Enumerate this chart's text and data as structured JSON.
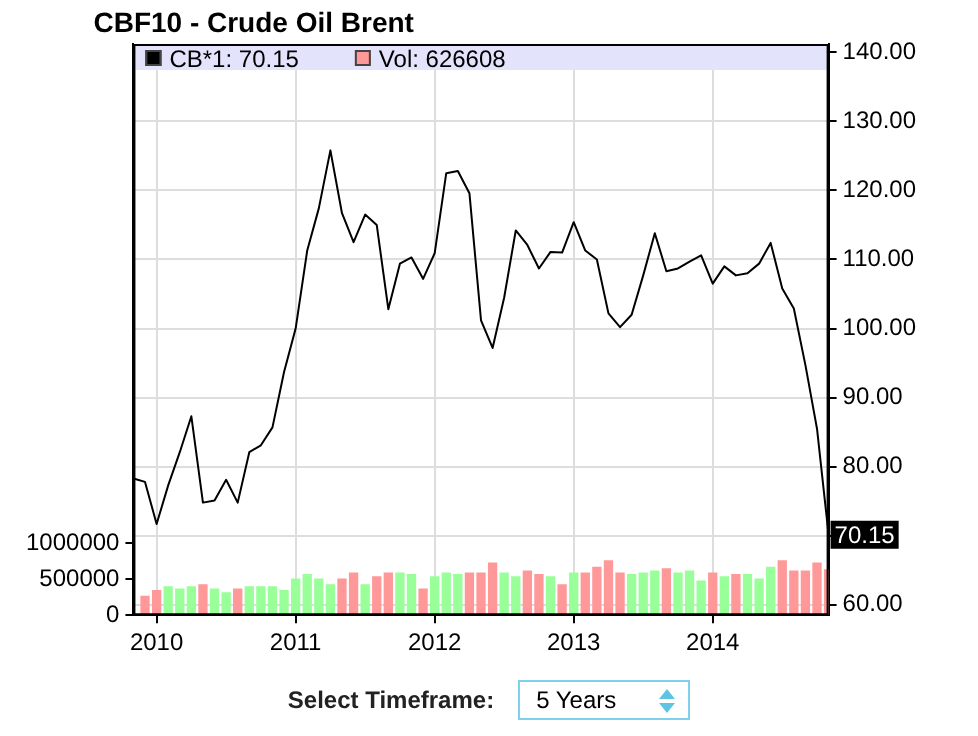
{
  "chart_data": {
    "type": "line",
    "title": "CBF10 - Crude Oil Brent",
    "series": [
      {
        "name": "CB*1: 70.15",
        "axis": "y2",
        "color": "#000000",
        "value_labels": [
          null,
          null,
          null,
          null,
          null,
          null,
          null,
          null,
          null,
          null,
          null,
          null,
          null,
          null,
          null,
          null,
          null,
          null,
          null,
          null,
          null,
          null,
          null,
          null,
          null,
          null,
          null,
          null,
          null,
          null,
          null,
          null,
          null,
          null,
          null,
          null,
          null,
          null,
          null,
          null,
          null,
          null,
          null,
          null,
          null,
          null,
          null,
          null,
          null,
          null,
          null,
          null,
          null,
          null,
          null,
          null,
          null,
          null,
          null,
          null,
          "70.15"
        ],
        "x": [
          "2009-11",
          "2009-12",
          "2010-01",
          "2010-02",
          "2010-03",
          "2010-04",
          "2010-05",
          "2010-06",
          "2010-07",
          "2010-08",
          "2010-09",
          "2010-10",
          "2010-11",
          "2010-12",
          "2011-01",
          "2011-02",
          "2011-03",
          "2011-04",
          "2011-05",
          "2011-06",
          "2011-07",
          "2011-08",
          "2011-09",
          "2011-10",
          "2011-11",
          "2011-12",
          "2012-01",
          "2012-02",
          "2012-03",
          "2012-04",
          "2012-05",
          "2012-06",
          "2012-07",
          "2012-08",
          "2012-09",
          "2012-10",
          "2012-11",
          "2012-12",
          "2013-01",
          "2013-02",
          "2013-03",
          "2013-04",
          "2013-05",
          "2013-06",
          "2013-07",
          "2013-08",
          "2013-09",
          "2013-10",
          "2013-11",
          "2013-12",
          "2014-01",
          "2014-02",
          "2014-03",
          "2014-04",
          "2014-05",
          "2014-06",
          "2014-07",
          "2014-08",
          "2014-09",
          "2014-10",
          "2014-11"
        ],
        "values": [
          78.3,
          77.8,
          71.7,
          77.3,
          82.1,
          87.3,
          74.8,
          75.1,
          78.1,
          74.8,
          82.1,
          83.1,
          85.7,
          93.7,
          100,
          111.3,
          117.4,
          125.8,
          116.7,
          112.5,
          116.5,
          115,
          102.8,
          109.4,
          110.3,
          107.2,
          110.9,
          122.5,
          122.8,
          119.6,
          101.2,
          97.2,
          104.5,
          114.2,
          112.1,
          108.7,
          111.1,
          111,
          115.4,
          111.3,
          110,
          102.2,
          100.2,
          102,
          107.7,
          113.8,
          108.3,
          108.7,
          109.7,
          110.6,
          106.5,
          109,
          107.7,
          108,
          109.4,
          112.4,
          105.8,
          102.9,
          94.7,
          85.5,
          70.15
        ]
      },
      {
        "name": "Vol: 626608",
        "type": "bar",
        "axis": "y",
        "color": "#ff9999",
        "x": [
          "2009-12",
          "2010-01",
          "2010-02",
          "2010-03",
          "2010-04",
          "2010-05",
          "2010-06",
          "2010-07",
          "2010-08",
          "2010-09",
          "2010-10",
          "2010-11",
          "2010-12",
          "2011-01",
          "2011-02",
          "2011-03",
          "2011-04",
          "2011-05",
          "2011-06",
          "2011-07",
          "2011-08",
          "2011-09",
          "2011-10",
          "2011-11",
          "2011-12",
          "2012-01",
          "2012-02",
          "2012-03",
          "2012-04",
          "2012-05",
          "2012-06",
          "2012-07",
          "2012-08",
          "2012-09",
          "2012-10",
          "2012-11",
          "2012-12",
          "2013-01",
          "2013-02",
          "2013-03",
          "2013-04",
          "2013-05",
          "2013-06",
          "2013-07",
          "2013-08",
          "2013-09",
          "2013-10",
          "2013-11",
          "2013-12",
          "2014-01",
          "2014-02",
          "2014-03",
          "2014-04",
          "2014-05",
          "2014-06",
          "2014-07",
          "2014-08",
          "2014-09",
          "2014-10",
          "2014-11"
        ],
        "values": [
          260000,
          340000,
          390000,
          360000,
          390000,
          420000,
          360000,
          310000,
          360000,
          390000,
          390000,
          390000,
          340000,
          500000,
          560000,
          500000,
          420000,
          500000,
          580000,
          420000,
          530000,
          580000,
          580000,
          560000,
          360000,
          530000,
          580000,
          560000,
          580000,
          580000,
          720000,
          580000,
          530000,
          610000,
          560000,
          530000,
          420000,
          580000,
          580000,
          660000,
          750000,
          580000,
          560000,
          580000,
          610000,
          640000,
          580000,
          610000,
          470000,
          580000,
          530000,
          560000,
          560000,
          500000,
          660000,
          750000,
          610000,
          610000,
          720000,
          626608
        ],
        "colors": [
          "#ff9999",
          "#ff9999",
          "#99ff99",
          "#99ff99",
          "#99ff99",
          "#ff9999",
          "#99ff99",
          "#99ff99",
          "#ff9999",
          "#99ff99",
          "#99ff99",
          "#99ff99",
          "#99ff99",
          "#99ff99",
          "#99ff99",
          "#99ff99",
          "#99ff99",
          "#ff9999",
          "#ff9999",
          "#99ff99",
          "#ff9999",
          "#ff9999",
          "#99ff99",
          "#99ff99",
          "#ff9999",
          "#99ff99",
          "#99ff99",
          "#99ff99",
          "#ff9999",
          "#ff9999",
          "#ff9999",
          "#99ff99",
          "#99ff99",
          "#ff9999",
          "#ff9999",
          "#99ff99",
          "#ff9999",
          "#99ff99",
          "#ff9999",
          "#ff9999",
          "#ff9999",
          "#ff9999",
          "#99ff99",
          "#99ff99",
          "#99ff99",
          "#ff9999",
          "#99ff99",
          "#99ff99",
          "#99ff99",
          "#ff9999",
          "#99ff99",
          "#ff9999",
          "#99ff99",
          "#99ff99",
          "#99ff99",
          "#ff9999",
          "#ff9999",
          "#ff9999",
          "#ff9999",
          "#ff9999"
        ]
      }
    ],
    "xlim": [
      "2009-11",
      "2014-11"
    ],
    "xticks": [
      "2010",
      "2011",
      "2012",
      "2013",
      "2014"
    ],
    "ylim": [
      0,
      7900000
    ],
    "yticks": [
      0,
      500000,
      1000000
    ],
    "y2lim": [
      58.5,
      141.2
    ],
    "y2ticks": [
      {
        "value": 60,
        "label": "60.00"
      },
      {
        "value": 70,
        "label": null
      },
      {
        "value": 80,
        "label": "80.00"
      },
      {
        "value": 90,
        "label": "90.00"
      },
      {
        "value": 100,
        "label": "100.00"
      },
      {
        "value": 110,
        "label": "110.00"
      },
      {
        "value": 120,
        "label": "120.00"
      },
      {
        "value": 130,
        "label": "130.00"
      },
      {
        "value": 140,
        "label": "140.00"
      }
    ],
    "grid": true,
    "legend": "top left",
    "marker": "none",
    "annotations": [
      "Select Timeframe:",
      "5 Years"
    ]
  }
}
